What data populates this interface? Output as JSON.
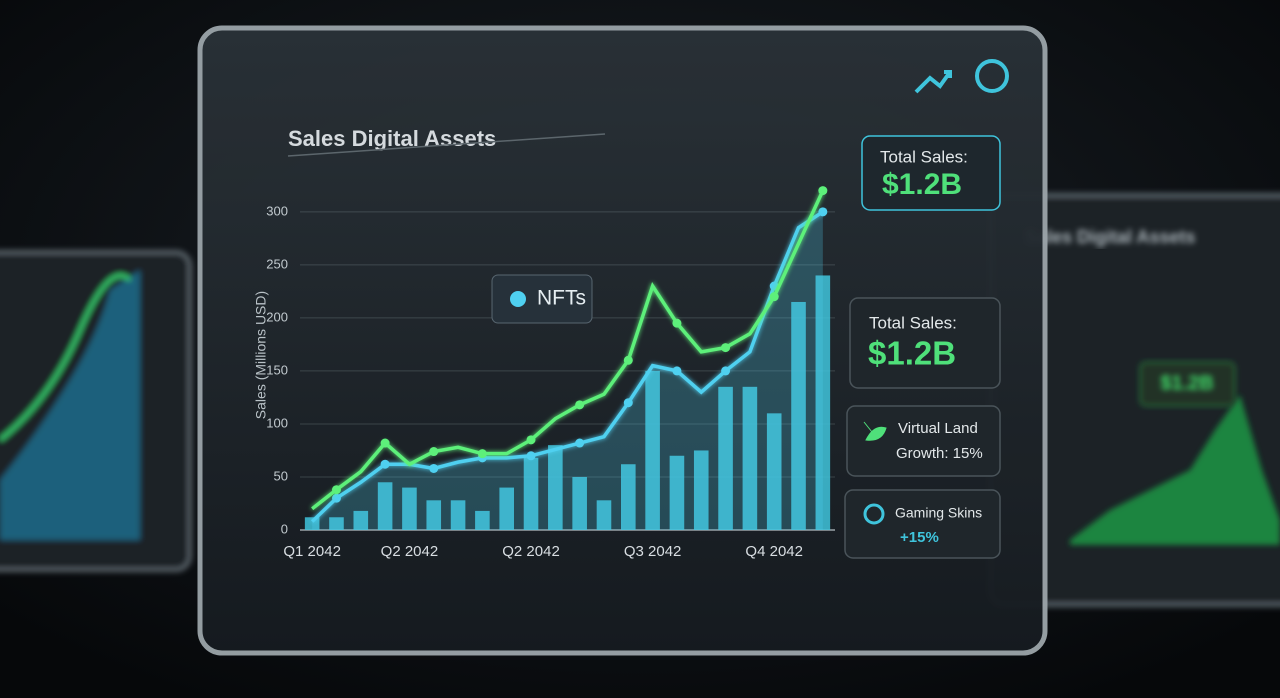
{
  "chart_data": {
    "type": "bar",
    "title": "Sales Digital Assets",
    "y_label": "Sales (Millions USD)",
    "categories": [
      "Q1 2042",
      null,
      null,
      null,
      "Q2 2042",
      null,
      null,
      null,
      null,
      "Q2 2042",
      null,
      null,
      null,
      null,
      "Q3 2042",
      null,
      null,
      null,
      null,
      "Q4 2042",
      null,
      null
    ],
    "series": [
      {
        "type": "bar",
        "color": "#3fc4dc",
        "values": [
          12,
          12,
          18,
          45,
          40,
          28,
          28,
          18,
          40,
          68,
          80,
          50,
          28,
          62,
          150,
          70,
          75,
          135,
          135,
          110,
          215,
          240
        ]
      },
      {
        "type": "area",
        "color": "#4fd0f0",
        "values": [
          8,
          30,
          45,
          62,
          62,
          58,
          64,
          68,
          68,
          70,
          76,
          82,
          88,
          120,
          155,
          150,
          130,
          150,
          168,
          230,
          285,
          300
        ]
      },
      {
        "type": "line",
        "color": "#5df07a",
        "values": [
          20,
          38,
          55,
          82,
          62,
          74,
          78,
          72,
          72,
          85,
          105,
          118,
          128,
          160,
          230,
          195,
          168,
          172,
          185,
          220,
          270,
          320
        ]
      }
    ],
    "ylim": [
      0,
      330
    ],
    "yticks": [
      0,
      50,
      100,
      150,
      200,
      250,
      300
    ],
    "grid": true,
    "annotation": "NFTs"
  },
  "cards": [
    {
      "label": "Total Sales:",
      "value": "$1.2B"
    },
    {
      "label": "Total Sales:",
      "value": "$1.2B"
    },
    {
      "label": "Virtual Land",
      "value": "Growth: 15%"
    },
    {
      "label": "Gaming Skins",
      "value": "+15%"
    }
  ],
  "background_panel": {
    "title": "Sales Digital Assets",
    "callout": "$1.2B"
  }
}
